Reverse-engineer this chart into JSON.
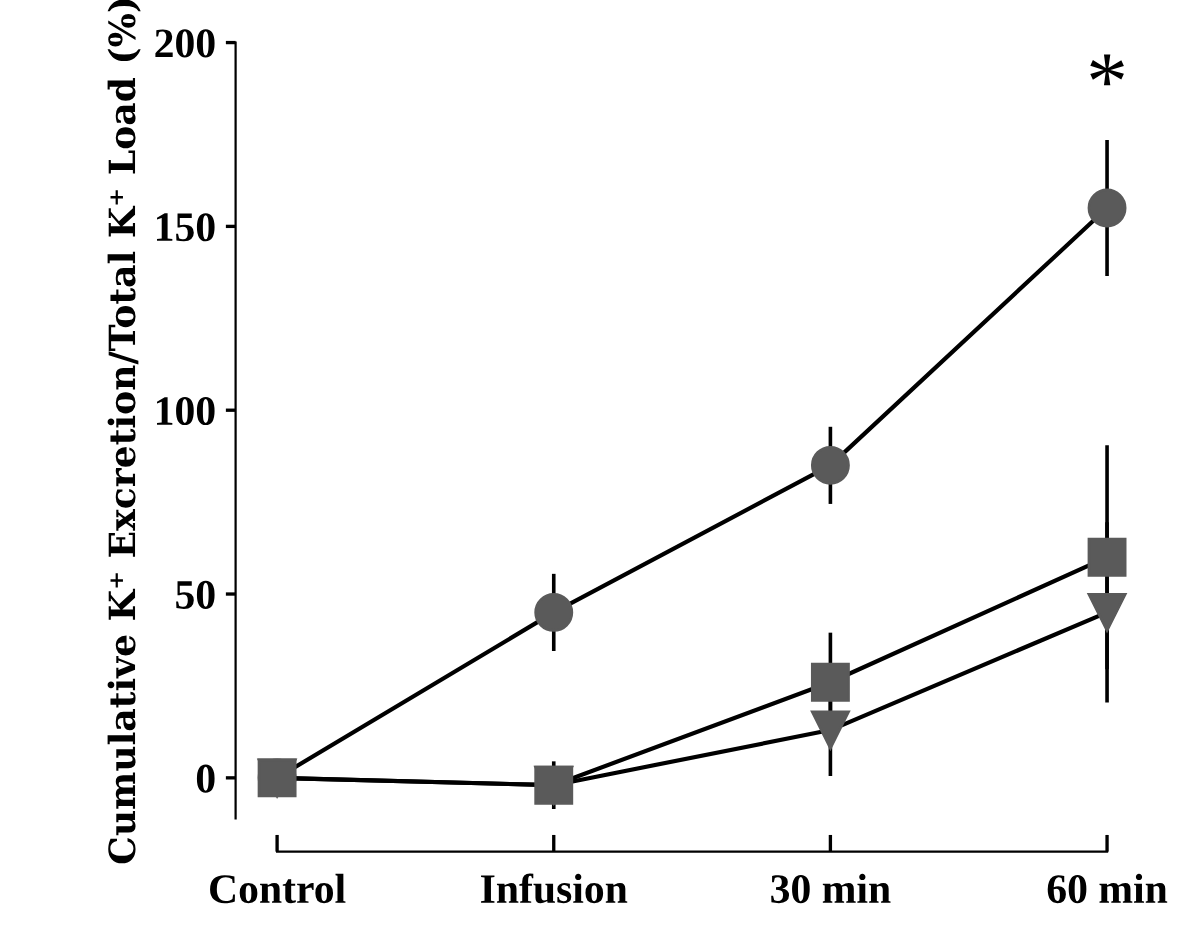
{
  "chart_data": {
    "type": "line",
    "ylabel": "Cumulative K⁺ Excretion/Total K⁺ Load (%)",
    "categories": [
      "Control",
      "Infusion",
      "30 min",
      "60 min"
    ],
    "series": [
      {
        "color": "#5a5a5a",
        "marker": "circle",
        "values": [
          0,
          45,
          85,
          155
        ],
        "errors": [
          null,
          10,
          10,
          18
        ]
      },
      {
        "color": "#5a5a5a",
        "marker": "triangle",
        "values": [
          0,
          -2,
          13,
          45
        ],
        "errors": [
          null,
          null,
          12,
          24
        ]
      },
      {
        "color": "#5a5a5a",
        "marker": "square",
        "values": [
          0,
          -2,
          26,
          60
        ],
        "errors": [
          null,
          6,
          13,
          30
        ]
      }
    ],
    "ylim": [
      -11,
      200
    ],
    "yticks": [
      0,
      50,
      100,
      150,
      200
    ],
    "grid": false,
    "legend": false,
    "annotations": [
      "*"
    ]
  }
}
